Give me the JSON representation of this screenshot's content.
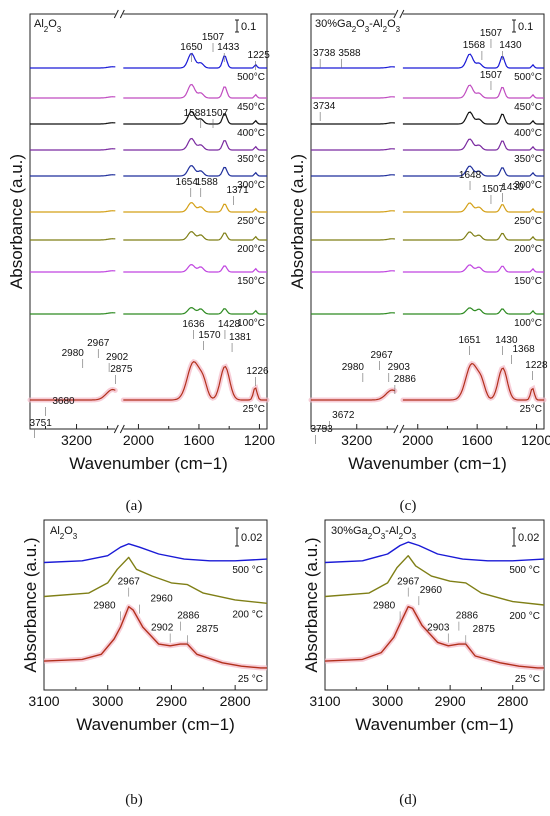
{
  "panels": {
    "a": {
      "caption": "(a)",
      "sample": "Al2O3",
      "scale_bar": "0.1",
      "xlabel": "Wavenumber (cm−1)",
      "ylabel": "Absorbance (a.u.)",
      "xticks": [
        "3200",
        "2000",
        "1600",
        "1200"
      ],
      "temperatures": [
        "500°C",
        "450°C",
        "400°C",
        "350°C",
        "300°C",
        "250°C",
        "200°C",
        "150°C",
        "100°C",
        "25°C"
      ],
      "annotations": [
        "1650",
        "1507",
        "1433",
        "1225",
        "1588",
        "1507",
        "1654",
        "1588",
        "1371",
        "1636",
        "1570",
        "1428",
        "1381",
        "1226",
        "2980",
        "2967",
        "2902",
        "2875",
        "3680",
        "3751"
      ]
    },
    "c": {
      "caption": "(c)",
      "sample": "30%Ga2O3-Al2O3",
      "scale_bar": "0.1",
      "xlabel": "Wavenumber (cm−1)",
      "ylabel": "Absorbance (a.u.)",
      "xticks": [
        "3200",
        "2000",
        "1600",
        "1200"
      ],
      "temperatures": [
        "500°C",
        "450°C",
        "400°C",
        "350°C",
        "300°C",
        "250°C",
        "200°C",
        "150°C",
        "100°C",
        "25°C"
      ],
      "annotations": [
        "3738",
        "3588",
        "1507",
        "1568",
        "1430",
        "1507",
        "3734",
        "1648",
        "1507",
        "1430",
        "1651",
        "1430",
        "1368",
        "1228",
        "2980",
        "2967",
        "2903",
        "2886",
        "3672",
        "3753"
      ]
    },
    "b": {
      "caption": "(b)",
      "sample": "Al2O3",
      "scale_bar": "0.02",
      "xlabel": "Wavenumber (cm−1)",
      "ylabel": "Absorbance (a.u.)",
      "xticks": [
        "3100",
        "3000",
        "2900",
        "2800"
      ],
      "temperatures": [
        "500 °C",
        "200 °C",
        "25 °C"
      ],
      "annotations": [
        "2967",
        "2980",
        "2960",
        "2886",
        "2902",
        "2875"
      ]
    },
    "d": {
      "caption": "(d)",
      "sample": "30%Ga2O3-Al2O3",
      "scale_bar": "0.02",
      "xlabel": "Wavenumber (cm−1)",
      "ylabel": "Absorbance (a.u.)",
      "xticks": [
        "3100",
        "3000",
        "2900",
        "2800"
      ],
      "temperatures": [
        "500 °C",
        "200 °C",
        "25 °C"
      ],
      "annotations": [
        "2967",
        "2980",
        "2960",
        "2886",
        "2903",
        "2875"
      ]
    }
  },
  "colors": {
    "500": "#1a1ad6",
    "450": "#c04cc0",
    "400": "#111111",
    "350": "#7a2aa0",
    "300": "#1f2f9c",
    "250": "#d4a017",
    "200": "#7f7f16",
    "150": "#c045e0",
    "100": "#2e8b22",
    "25": "#b2301c",
    "halo": "#f3b8c6"
  },
  "chart_data": [
    {
      "panel": "a",
      "type": "line",
      "title": "Al2O3",
      "xlabel": "Wavenumber (cm−1)",
      "ylabel": "Absorbance (a.u.)",
      "x_axis": "reversed, broken between ~2950 and ~2100 cm−1",
      "xlim": [
        3500,
        1150
      ],
      "series": [
        {
          "name": "500°C",
          "peaks": [
            1650,
            1507,
            1433,
            1225
          ]
        },
        {
          "name": "450°C",
          "peaks": []
        },
        {
          "name": "400°C",
          "peaks": []
        },
        {
          "name": "350°C",
          "peaks": [
            1588,
            1507
          ]
        },
        {
          "name": "300°C",
          "peaks": []
        },
        {
          "name": "250°C",
          "peaks": [
            1654,
            1588,
            1371
          ]
        },
        {
          "name": "200°C",
          "peaks": []
        },
        {
          "name": "150°C",
          "peaks": []
        },
        {
          "name": "100°C",
          "peaks": []
        },
        {
          "name": "25°C",
          "peaks": [
            3751,
            3680,
            2980,
            2967,
            2902,
            2875,
            1636,
            1570,
            1428,
            1381,
            1226
          ]
        }
      ]
    },
    {
      "panel": "c",
      "type": "line",
      "title": "30%Ga2O3-Al2O3",
      "xlabel": "Wavenumber (cm−1)",
      "ylabel": "Absorbance (a.u.)",
      "x_axis": "reversed, broken between ~2950 and ~2100 cm−1",
      "xlim": [
        3500,
        1150
      ],
      "series": [
        {
          "name": "500°C",
          "peaks": [
            3738,
            3588,
            1568,
            1507,
            1430
          ]
        },
        {
          "name": "450°C",
          "peaks": [
            1507
          ]
        },
        {
          "name": "400°C",
          "peaks": [
            3734
          ]
        },
        {
          "name": "350°C",
          "peaks": []
        },
        {
          "name": "300°C",
          "peaks": [
            1648,
            1507,
            1430
          ]
        },
        {
          "name": "250°C",
          "peaks": []
        },
        {
          "name": "200°C",
          "peaks": []
        },
        {
          "name": "150°C",
          "peaks": []
        },
        {
          "name": "100°C",
          "peaks": []
        },
        {
          "name": "25°C",
          "peaks": [
            3753,
            3672,
            2980,
            2967,
            2903,
            2886,
            1651,
            1430,
            1368,
            1228
          ]
        }
      ]
    },
    {
      "panel": "b",
      "type": "line",
      "title": "Al2O3",
      "xlabel": "Wavenumber (cm−1)",
      "ylabel": "Absorbance (a.u.)",
      "xlim": [
        3100,
        2750
      ],
      "series": [
        {
          "name": "500 °C",
          "x": [
            3100,
            3040,
            3000,
            2980,
            2967,
            2950,
            2920,
            2880,
            2840,
            2800,
            2750
          ],
          "y": [
            0.12,
            0.121,
            0.124,
            0.129,
            0.131,
            0.129,
            0.125,
            0.122,
            0.121,
            0.121,
            0.122
          ]
        },
        {
          "name": "200 °C",
          "x": [
            3100,
            3030,
            3000,
            2985,
            2967,
            2955,
            2930,
            2900,
            2875,
            2850,
            2800,
            2750
          ],
          "y": [
            0.1,
            0.102,
            0.108,
            0.116,
            0.123,
            0.116,
            0.112,
            0.108,
            0.107,
            0.102,
            0.098,
            0.096
          ]
        },
        {
          "name": "25 °C",
          "x": [
            3100,
            3040,
            3010,
            2990,
            2980,
            2967,
            2960,
            2945,
            2920,
            2902,
            2886,
            2875,
            2860,
            2820,
            2790,
            2760,
            2750
          ],
          "y": [
            0.062,
            0.063,
            0.066,
            0.075,
            0.082,
            0.094,
            0.092,
            0.082,
            0.072,
            0.071,
            0.072,
            0.072,
            0.066,
            0.061,
            0.059,
            0.058,
            0.058
          ]
        }
      ]
    },
    {
      "panel": "d",
      "type": "line",
      "title": "30%Ga2O3-Al2O3",
      "xlabel": "Wavenumber (cm−1)",
      "ylabel": "Absorbance (a.u.)",
      "xlim": [
        3100,
        2750
      ],
      "series": [
        {
          "name": "500 °C",
          "x": [
            3100,
            3040,
            3000,
            2980,
            2967,
            2950,
            2920,
            2880,
            2840,
            2800,
            2750
          ],
          "y": [
            0.12,
            0.121,
            0.125,
            0.13,
            0.132,
            0.13,
            0.125,
            0.122,
            0.121,
            0.121,
            0.122
          ]
        },
        {
          "name": "200 °C",
          "x": [
            3100,
            3030,
            3000,
            2985,
            2967,
            2955,
            2930,
            2900,
            2875,
            2850,
            2800,
            2750
          ],
          "y": [
            0.1,
            0.102,
            0.108,
            0.117,
            0.124,
            0.118,
            0.112,
            0.109,
            0.108,
            0.102,
            0.097,
            0.095
          ]
        },
        {
          "name": "25 °C",
          "x": [
            3100,
            3040,
            3010,
            2990,
            2980,
            2967,
            2960,
            2945,
            2920,
            2903,
            2886,
            2875,
            2860,
            2820,
            2790,
            2760,
            2750
          ],
          "y": [
            0.062,
            0.063,
            0.067,
            0.076,
            0.084,
            0.094,
            0.093,
            0.083,
            0.073,
            0.071,
            0.072,
            0.072,
            0.065,
            0.061,
            0.059,
            0.058,
            0.058
          ]
        }
      ]
    }
  ]
}
